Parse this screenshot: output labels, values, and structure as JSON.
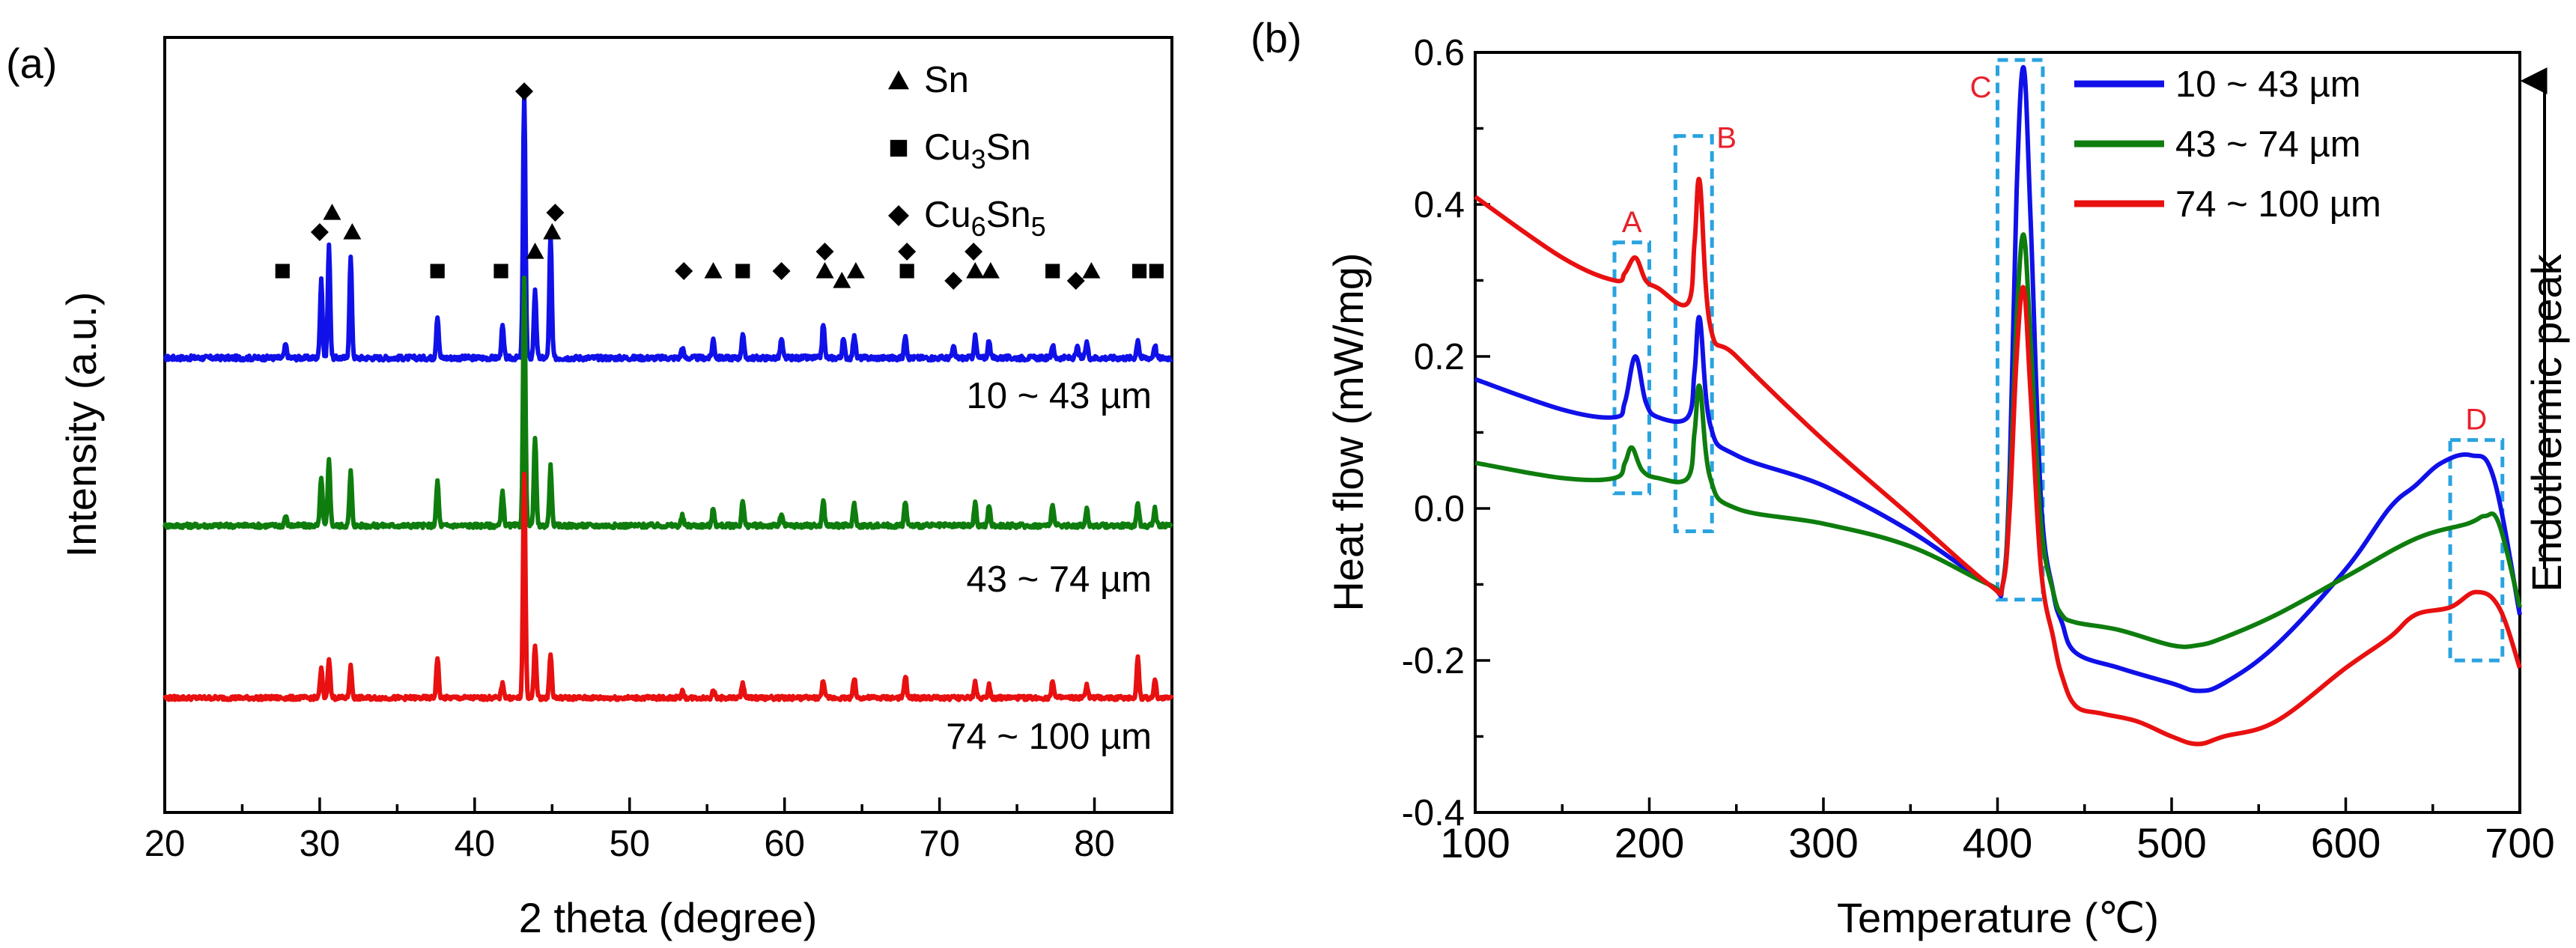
{
  "chart_data": [
    {
      "type": "line",
      "panel_label": "(a)",
      "title": "",
      "xlabel": "2 theta (degree)",
      "ylabel": "Intensity (a.u.)",
      "xlim": [
        20,
        85
      ],
      "xticks": [
        "20",
        "30",
        "40",
        "50",
        "60",
        "70",
        "80"
      ],
      "legend": {
        "placement": "top-right",
        "entries": [
          {
            "marker": "triangle",
            "label": "Sn"
          },
          {
            "marker": "square",
            "label": "Cu3Sn",
            "base": "Cu",
            "sub1": "3",
            "mid": "Sn",
            "sub2": ""
          },
          {
            "marker": "diamond",
            "label": "Cu6Sn5",
            "base": "Cu",
            "sub1": "6",
            "mid": "Sn",
            "sub2": "5"
          }
        ]
      },
      "series": [
        {
          "name": "10 ~ 43 µm",
          "color": "#1010e8",
          "baseline": 0,
          "peaks": [
            [
              27.8,
              0.05
            ],
            [
              30.1,
              0.3
            ],
            [
              30.6,
              0.42
            ],
            [
              32.0,
              0.38
            ],
            [
              37.6,
              0.16
            ],
            [
              41.8,
              0.12
            ],
            [
              43.2,
              1.0
            ],
            [
              43.9,
              0.26
            ],
            [
              44.9,
              0.46
            ],
            [
              53.4,
              0.04
            ],
            [
              55.4,
              0.07
            ],
            [
              57.3,
              0.09
            ],
            [
              59.8,
              0.07
            ],
            [
              62.5,
              0.13
            ],
            [
              63.8,
              0.07
            ],
            [
              64.5,
              0.09
            ],
            [
              67.8,
              0.09
            ],
            [
              70.9,
              0.04
            ],
            [
              72.3,
              0.08
            ],
            [
              73.2,
              0.07
            ],
            [
              77.3,
              0.05
            ],
            [
              78.9,
              0.04
            ],
            [
              79.5,
              0.06
            ],
            [
              82.8,
              0.07
            ],
            [
              83.9,
              0.05
            ]
          ]
        },
        {
          "name": "43 ~ 74 µm",
          "color": "#0e7d0e",
          "baseline": 0,
          "peaks": [
            [
              27.8,
              0.04
            ],
            [
              30.1,
              0.2
            ],
            [
              30.6,
              0.27
            ],
            [
              32.0,
              0.22
            ],
            [
              37.6,
              0.18
            ],
            [
              41.8,
              0.14
            ],
            [
              43.2,
              1.0
            ],
            [
              43.9,
              0.36
            ],
            [
              44.9,
              0.24
            ],
            [
              53.4,
              0.04
            ],
            [
              55.4,
              0.07
            ],
            [
              57.3,
              0.1
            ],
            [
              59.8,
              0.05
            ],
            [
              62.5,
              0.1
            ],
            [
              64.5,
              0.09
            ],
            [
              67.8,
              0.1
            ],
            [
              72.3,
              0.09
            ],
            [
              73.2,
              0.08
            ],
            [
              77.3,
              0.09
            ],
            [
              79.5,
              0.07
            ],
            [
              82.8,
              0.09
            ],
            [
              83.9,
              0.07
            ]
          ]
        },
        {
          "name": "74 ~ 100 µm",
          "color": "#e81010",
          "baseline": 0,
          "peaks": [
            [
              30.1,
              0.13
            ],
            [
              30.6,
              0.18
            ],
            [
              32.0,
              0.14
            ],
            [
              37.6,
              0.18
            ],
            [
              41.8,
              0.07
            ],
            [
              43.2,
              1.0
            ],
            [
              43.9,
              0.24
            ],
            [
              44.9,
              0.2
            ],
            [
              53.4,
              0.03
            ],
            [
              55.4,
              0.04
            ],
            [
              57.3,
              0.07
            ],
            [
              62.5,
              0.08
            ],
            [
              64.5,
              0.09
            ],
            [
              67.8,
              0.1
            ],
            [
              72.3,
              0.07
            ],
            [
              73.2,
              0.06
            ],
            [
              77.3,
              0.08
            ],
            [
              79.5,
              0.06
            ],
            [
              82.8,
              0.18
            ],
            [
              83.9,
              0.08
            ]
          ]
        }
      ],
      "phase_markers": [
        {
          "marker": "square",
          "x": 27.6,
          "tier": 1
        },
        {
          "marker": "diamond",
          "x": 30.0,
          "tier": 3
        },
        {
          "marker": "triangle",
          "x": 30.8,
          "tier": 4
        },
        {
          "marker": "triangle",
          "x": 32.1,
          "tier": 3
        },
        {
          "marker": "square",
          "x": 37.6,
          "tier": 1
        },
        {
          "marker": "square",
          "x": 41.7,
          "tier": 1
        },
        {
          "marker": "diamond",
          "x": 43.2,
          "tier": 6
        },
        {
          "marker": "triangle",
          "x": 43.9,
          "tier": 2
        },
        {
          "marker": "triangle",
          "x": 45.0,
          "tier": 3
        },
        {
          "marker": "diamond",
          "x": 45.2,
          "tier": 4
        },
        {
          "marker": "diamond",
          "x": 53.5,
          "tier": 1
        },
        {
          "marker": "triangle",
          "x": 55.4,
          "tier": 1
        },
        {
          "marker": "square",
          "x": 57.3,
          "tier": 1
        },
        {
          "marker": "diamond",
          "x": 59.8,
          "tier": 1
        },
        {
          "marker": "triangle",
          "x": 62.6,
          "tier": 1
        },
        {
          "marker": "diamond",
          "x": 62.6,
          "tier": 2
        },
        {
          "marker": "triangle",
          "x": 63.7,
          "tier": 0.5
        },
        {
          "marker": "triangle",
          "x": 64.6,
          "tier": 1
        },
        {
          "marker": "square",
          "x": 67.9,
          "tier": 1
        },
        {
          "marker": "diamond",
          "x": 67.9,
          "tier": 2
        },
        {
          "marker": "diamond",
          "x": 70.9,
          "tier": 0.5
        },
        {
          "marker": "triangle",
          "x": 72.3,
          "tier": 1
        },
        {
          "marker": "diamond",
          "x": 72.2,
          "tier": 2
        },
        {
          "marker": "triangle",
          "x": 73.3,
          "tier": 1
        },
        {
          "marker": "square",
          "x": 77.3,
          "tier": 1
        },
        {
          "marker": "diamond",
          "x": 78.8,
          "tier": 0.5
        },
        {
          "marker": "triangle",
          "x": 79.8,
          "tier": 1
        },
        {
          "marker": "square",
          "x": 82.9,
          "tier": 1
        },
        {
          "marker": "square",
          "x": 84.0,
          "tier": 1
        }
      ]
    },
    {
      "type": "line",
      "panel_label": "(b)",
      "title": "",
      "xlabel": "Temperature (℃)",
      "ylabel": "Heat flow (mW/mg)",
      "right_label": "Endothermic peak",
      "xlim": [
        100,
        700
      ],
      "ylim": [
        -0.4,
        0.6
      ],
      "xticks": [
        "100",
        "200",
        "300",
        "400",
        "500",
        "600",
        "700"
      ],
      "yticks": [
        "-0.4",
        "-0.2",
        "0.0",
        "0.2",
        "0.4",
        "0.6"
      ],
      "legend": {
        "placement": "top-right"
      },
      "series": [
        {
          "name": "10 ~ 43 µm",
          "color": "#1010e8",
          "x": [
            100,
            150,
            180,
            186,
            192,
            198,
            205,
            222,
            226,
            229,
            235,
            250,
            300,
            350,
            395,
            403,
            407,
            411,
            415,
            419,
            425,
            432,
            437,
            445,
            470,
            500,
            515,
            530,
            560,
            600,
            625,
            640,
            655,
            672,
            685,
            700
          ],
          "y": [
            0.17,
            0.13,
            0.12,
            0.14,
            0.2,
            0.14,
            0.12,
            0.12,
            0.18,
            0.25,
            0.11,
            0.07,
            0.03,
            -0.03,
            -0.1,
            -0.1,
            0.05,
            0.42,
            0.58,
            0.38,
            0.01,
            -0.11,
            -0.15,
            -0.19,
            -0.21,
            -0.23,
            -0.24,
            -0.23,
            -0.18,
            -0.08,
            0.0,
            0.03,
            0.06,
            0.07,
            0.04,
            -0.14
          ]
        },
        {
          "name": "43 ~ 74 µm",
          "color": "#0e7d0e",
          "x": [
            100,
            150,
            180,
            186,
            190,
            196,
            205,
            222,
            226,
            229,
            235,
            250,
            300,
            350,
            395,
            403,
            407,
            411,
            415,
            419,
            425,
            432,
            437,
            445,
            470,
            500,
            515,
            530,
            560,
            600,
            640,
            670,
            680,
            688,
            700
          ],
          "y": [
            0.06,
            0.04,
            0.04,
            0.06,
            0.08,
            0.05,
            0.04,
            0.04,
            0.1,
            0.16,
            0.04,
            0.0,
            -0.02,
            -0.05,
            -0.1,
            -0.1,
            0.02,
            0.25,
            0.36,
            0.22,
            -0.02,
            -0.11,
            -0.14,
            -0.15,
            -0.16,
            -0.18,
            -0.18,
            -0.17,
            -0.14,
            -0.09,
            -0.04,
            -0.02,
            -0.01,
            -0.02,
            -0.13
          ]
        },
        {
          "name": "74 ~ 100 µm",
          "color": "#e81010",
          "x": [
            100,
            150,
            180,
            186,
            192,
            198,
            205,
            222,
            226,
            229,
            235,
            250,
            300,
            350,
            395,
            403,
            407,
            411,
            415,
            419,
            425,
            432,
            437,
            445,
            460,
            480,
            500,
            515,
            530,
            560,
            600,
            625,
            640,
            660,
            675,
            688,
            700
          ],
          "y": [
            0.41,
            0.33,
            0.3,
            0.31,
            0.33,
            0.3,
            0.29,
            0.27,
            0.35,
            0.43,
            0.24,
            0.2,
            0.09,
            -0.01,
            -0.1,
            -0.1,
            0.0,
            0.2,
            0.29,
            0.15,
            -0.08,
            -0.17,
            -0.22,
            -0.26,
            -0.27,
            -0.28,
            -0.3,
            -0.31,
            -0.3,
            -0.28,
            -0.21,
            -0.17,
            -0.14,
            -0.13,
            -0.11,
            -0.13,
            -0.21
          ]
        }
      ],
      "regions": [
        {
          "label": "A",
          "x0": 180,
          "x1": 200,
          "y0": 0.02,
          "y1": 0.35
        },
        {
          "label": "B",
          "x0": 215,
          "x1": 236,
          "y0": -0.03,
          "y1": 0.49
        },
        {
          "label": "C",
          "x0": 400,
          "x1": 426,
          "y0": -0.12,
          "y1": 0.59
        },
        {
          "label": "D",
          "x0": 660,
          "x1": 690,
          "y0": -0.2,
          "y1": 0.09
        }
      ]
    }
  ],
  "panel_a_labels": {
    "s1": "10 ~ 43 µm",
    "s2": "43 ~ 74 µm",
    "s3": "74 ~ 100 µm"
  }
}
